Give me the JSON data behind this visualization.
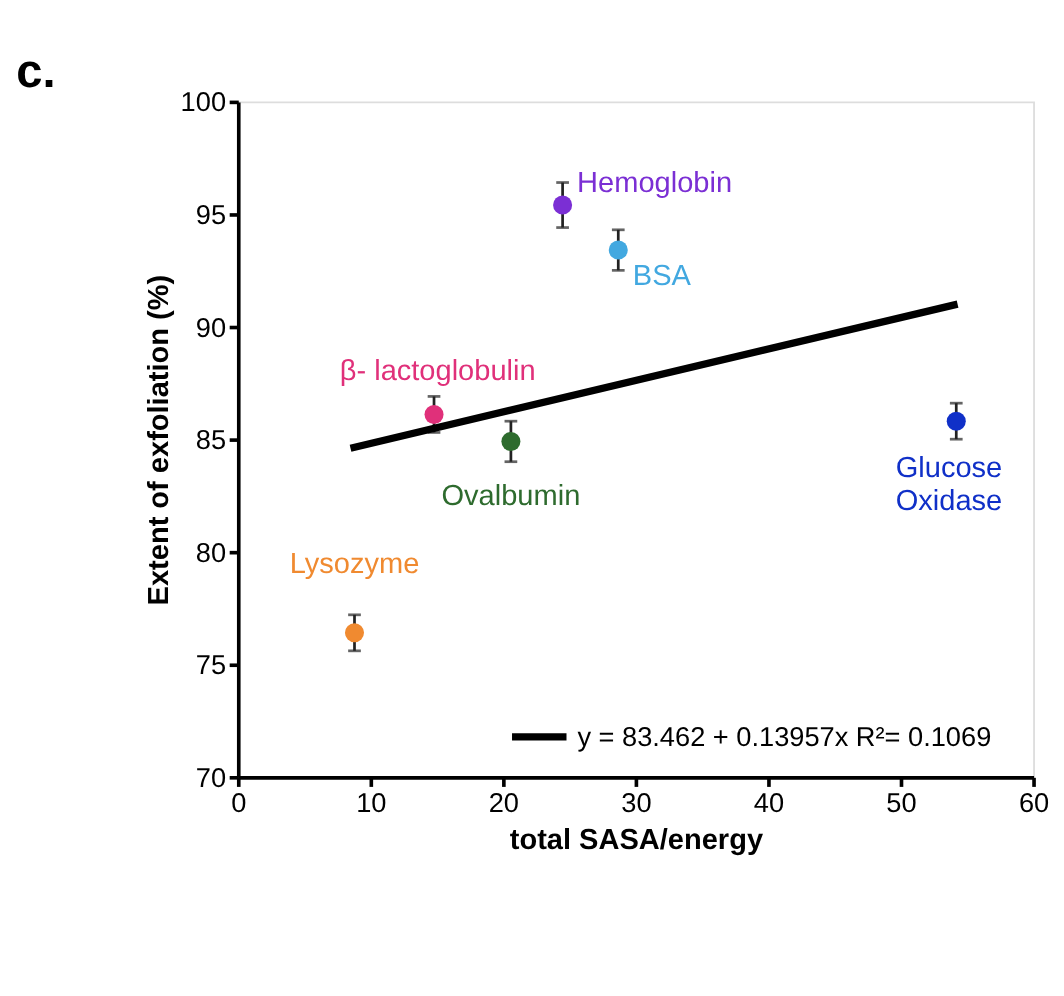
{
  "chart_data": {
    "type": "scatter",
    "title": "c.",
    "xlabel": "total SASA/energy",
    "ylabel": "Extent of exfoliation (%)",
    "xlim": [
      0,
      60
    ],
    "xticks": [
      0,
      10,
      20,
      30,
      40,
      50,
      60
    ],
    "ylim": [
      70,
      100
    ],
    "yticks": [
      70,
      75,
      80,
      85,
      90,
      95,
      100
    ],
    "grid": false,
    "legend": "bottom right",
    "marker": "circle",
    "series": [
      {
        "name": "Hemoglobin",
        "color": "#7b2fd4",
        "x": [
          24.5
        ],
        "values": [
          95.4
        ],
        "errors": [
          1.0
        ]
      },
      {
        "name": "BSA",
        "color": "#42a8e0",
        "x": [
          28.7
        ],
        "values": [
          93.4
        ],
        "errors": [
          0.9
        ]
      },
      {
        "name": "β- lactoglobulin",
        "color": "#e0307a",
        "x": [
          14.8
        ],
        "values": [
          86.1
        ],
        "errors": [
          0.8
        ]
      },
      {
        "name": "Ovalbumin",
        "color": "#2e6b2e",
        "x": [
          20.6
        ],
        "values": [
          84.9
        ],
        "errors": [
          0.9
        ]
      },
      {
        "name": "Glucose\nOxidase",
        "color": "#1030c8",
        "x": [
          54.2
        ],
        "values": [
          85.8
        ],
        "errors": [
          0.8
        ]
      },
      {
        "name": "Lysozyme",
        "color": "#f08a30",
        "x": [
          8.8
        ],
        "values": [
          76.4
        ],
        "errors": [
          0.8
        ]
      },
      {
        "name": "y = 83.462 + 0.13957x   R²= 0.1069",
        "type": "line",
        "color": "#000000",
        "x": [
          8.5,
          54.3
        ],
        "values": [
          84.6,
          91.0
        ],
        "line_style": "solid",
        "marker": "none"
      }
    ]
  }
}
